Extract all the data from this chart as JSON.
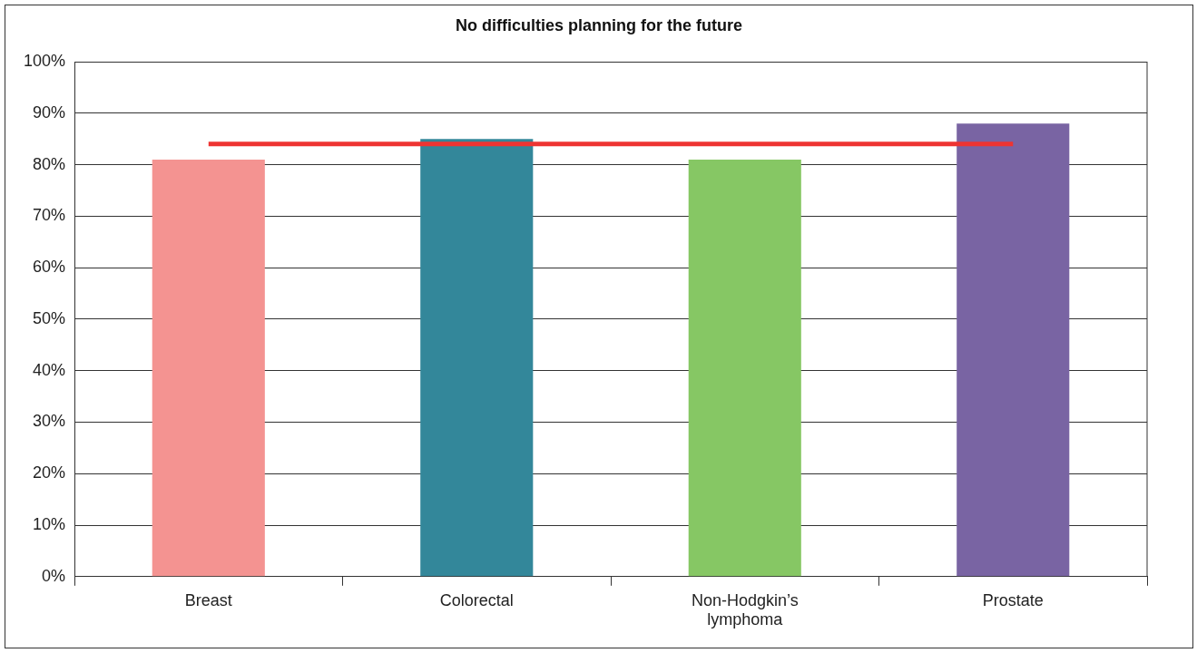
{
  "chart_data": {
    "type": "bar",
    "title": "No difficulties planning for the future",
    "categories": [
      "Breast",
      "Colorectal",
      "Non-Hodgkin’s lymphoma",
      "Prostate"
    ],
    "values": [
      81,
      85,
      81,
      88
    ],
    "colors": [
      "#f49391",
      "#33879a",
      "#86c764",
      "#7964a3"
    ],
    "series": [
      {
        "type": "line",
        "color": "#ee3432",
        "values": [
          84,
          84,
          84,
          84
        ]
      }
    ],
    "ylim": [
      0,
      100
    ],
    "yticks": [
      {
        "value": 0,
        "label": "0%"
      },
      {
        "value": 10,
        "label": "10%"
      },
      {
        "value": 20,
        "label": "20%"
      },
      {
        "value": 30,
        "label": "30%"
      },
      {
        "value": 40,
        "label": "40%"
      },
      {
        "value": 50,
        "label": "50%"
      },
      {
        "value": 60,
        "label": "60%"
      },
      {
        "value": 70,
        "label": "70%"
      },
      {
        "value": 80,
        "label": "80%"
      },
      {
        "value": 90,
        "label": "90%"
      },
      {
        "value": 100,
        "label": "100%"
      }
    ],
    "grid": "y",
    "legend": false,
    "marker": "none"
  }
}
